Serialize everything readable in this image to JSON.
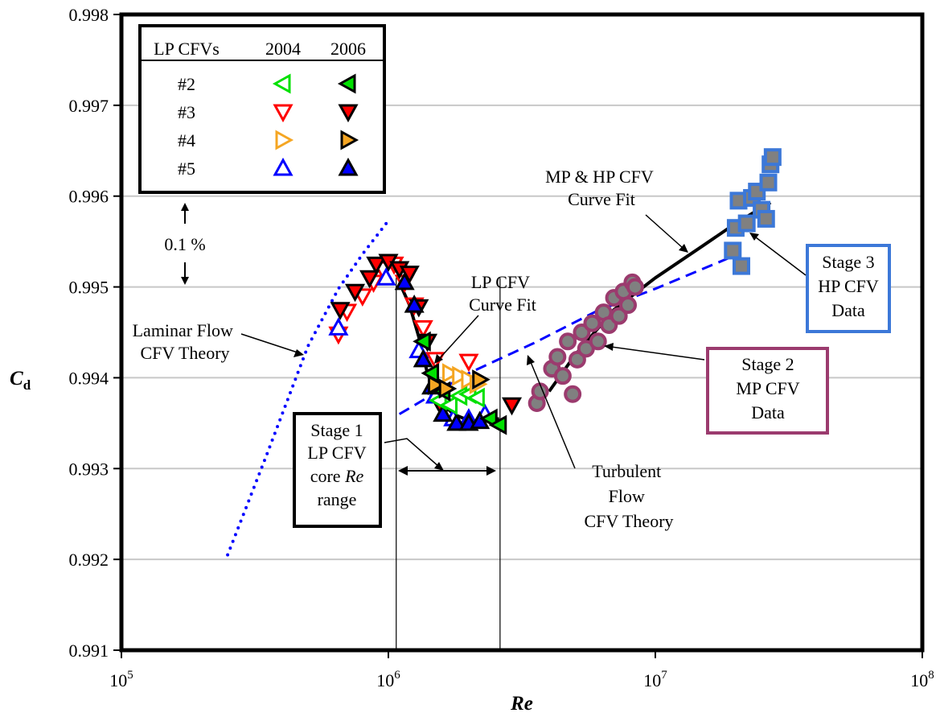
{
  "chart_data": {
    "type": "scatter",
    "title": "",
    "xlabel": "Re",
    "ylabel": "C",
    "ylabel_sub": "d",
    "x_scale": "log",
    "xlim": [
      100000,
      100000000
    ],
    "ylim": [
      0.991,
      0.998
    ],
    "grid": "horizontal",
    "x_ticks": [
      {
        "value": 100000,
        "base": "10",
        "exp": "5"
      },
      {
        "value": 1000000,
        "base": "10",
        "exp": "6"
      },
      {
        "value": 10000000,
        "base": "10",
        "exp": "7"
      },
      {
        "value": 100000000,
        "base": "10",
        "exp": "8"
      }
    ],
    "y_ticks": [
      0.991,
      0.992,
      0.993,
      0.994,
      0.995,
      0.996,
      0.997,
      0.998
    ],
    "y_tick_labels": [
      "0.991",
      "0.992",
      "0.993",
      "0.994",
      "0.995",
      "0.996",
      "0.997",
      "0.998"
    ],
    "legend": {
      "position": "top-left",
      "header": [
        "LP CFVs",
        "2004",
        "2006"
      ],
      "rows": [
        {
          "label": "#2",
          "color": "#00e000",
          "symbol": "triangle-left"
        },
        {
          "label": "#3",
          "color": "#ff0000",
          "symbol": "triangle-down"
        },
        {
          "label": "#4",
          "color": "#f5a623",
          "symbol": "triangle-right"
        },
        {
          "label": "#5",
          "color": "#0000ff",
          "symbol": "triangle-up"
        }
      ]
    },
    "series": [
      {
        "name": "#3 2004",
        "color": "#ff0000",
        "symbol": "triangle-down",
        "filled": false,
        "x": [
          650000,
          700000,
          800000,
          880000,
          950000,
          1050000,
          1150000,
          1250000,
          1350000,
          1500000,
          2000000
        ],
        "y": [
          0.99448,
          0.99473,
          0.9949,
          0.99505,
          0.9952,
          0.99525,
          0.99505,
          0.9948,
          0.99455,
          0.9942,
          0.99418
        ]
      },
      {
        "name": "#3 2006",
        "color": "#ff0000",
        "symbol": "triangle-down",
        "filled": true,
        "x": [
          660000,
          750000,
          850000,
          900000,
          1000000,
          1100000,
          1200000,
          1300000,
          1400000,
          1600000,
          2900000
        ],
        "y": [
          0.99475,
          0.99495,
          0.9951,
          0.99525,
          0.99528,
          0.9952,
          0.99515,
          0.99478,
          0.9944,
          0.99365,
          0.9937
        ]
      },
      {
        "name": "#5 2004",
        "color": "#0000ff",
        "symbol": "triangle-up",
        "filled": false,
        "x": [
          650000,
          980000,
          1300000,
          1500000,
          1750000,
          2000000,
          2300000
        ],
        "y": [
          0.99455,
          0.9951,
          0.9943,
          0.9938,
          0.99355,
          0.99355,
          0.9936
        ]
      },
      {
        "name": "#5 2006",
        "color": "#0000ff",
        "symbol": "triangle-up",
        "filled": true,
        "x": [
          1150000,
          1250000,
          1350000,
          1450000,
          1600000,
          1800000,
          2000000,
          2200000
        ],
        "y": [
          0.99505,
          0.9948,
          0.9942,
          0.9939,
          0.9936,
          0.9935,
          0.9935,
          0.99352
        ]
      },
      {
        "name": "#2 2004",
        "color": "#00e000",
        "symbol": "triangle-left",
        "filled": false,
        "x": [
          1550000,
          1700000,
          1850000,
          2000000,
          2150000
        ],
        "y": [
          0.99375,
          0.9937,
          0.9938,
          0.99382,
          0.99378
        ]
      },
      {
        "name": "#2 2006",
        "color": "#00e000",
        "symbol": "triangle-left",
        "filled": true,
        "x": [
          1350000,
          1450000,
          1600000,
          2400000,
          2600000
        ],
        "y": [
          0.9944,
          0.99405,
          0.99385,
          0.99355,
          0.99348
        ]
      },
      {
        "name": "#4 2004",
        "color": "#f5a623",
        "symbol": "triangle-right",
        "filled": false,
        "x": [
          1700000,
          1850000,
          2000000,
          2150000
        ],
        "y": [
          0.99405,
          0.99402,
          0.99398,
          0.99393
        ]
      },
      {
        "name": "#4 2006",
        "color": "#f5a623",
        "symbol": "triangle-right",
        "filled": true,
        "x": [
          1500000,
          1650000,
          2200000
        ],
        "y": [
          0.99392,
          0.99388,
          0.99398
        ]
      },
      {
        "name": "Stage 2 MP CFV Data",
        "color": "#9b3b6e",
        "symbol": "circle",
        "x": [
          3600000,
          3700000,
          4100000,
          4300000,
          4500000,
          4700000,
          4900000,
          5100000,
          5300000,
          5500000,
          5800000,
          6100000,
          6400000,
          6700000,
          7000000,
          7300000,
          7600000,
          7900000,
          8200000,
          8400000
        ],
        "y": [
          0.99372,
          0.99385,
          0.9941,
          0.99423,
          0.99402,
          0.9944,
          0.99382,
          0.9942,
          0.9945,
          0.99432,
          0.9946,
          0.9944,
          0.99472,
          0.99458,
          0.99488,
          0.99468,
          0.99495,
          0.9948,
          0.99505,
          0.995
        ]
      },
      {
        "name": "Stage 3 HP CFV Data",
        "color": "#3c78d8",
        "symbol": "square",
        "x": [
          19500000,
          20000000,
          20500000,
          21000000,
          22000000,
          23000000,
          24000000,
          25000000,
          26000000,
          26500000,
          27000000,
          27500000
        ],
        "y": [
          0.9954,
          0.99565,
          0.99595,
          0.99523,
          0.9957,
          0.99598,
          0.99605,
          0.99585,
          0.99575,
          0.99615,
          0.99635,
          0.99643
        ]
      }
    ],
    "curves": [
      {
        "name": "Laminar Flow CFV Theory",
        "style": "dotted",
        "color": "#0000ff",
        "x": [
          250000,
          350000,
          500000,
          650000,
          800000,
          1000000
        ],
        "y": [
          0.99205,
          0.99315,
          0.99435,
          0.99498,
          0.99536,
          0.99573
        ]
      },
      {
        "name": "Turbulent Flow CFV Theory",
        "style": "dashed",
        "color": "#0000ff",
        "x": [
          1100000,
          2000000,
          3500000,
          6000000,
          10000000,
          20000000
        ],
        "y": [
          0.9936,
          0.99405,
          0.99438,
          0.99473,
          0.99498,
          0.99535
        ]
      },
      {
        "name": "LP CFV Curve Fit",
        "style": "solid",
        "color": "#000000",
        "x": [
          1100000,
          1200000,
          1300000,
          1400000,
          1550000,
          1750000,
          2000000,
          2300000,
          2600000
        ],
        "y": [
          0.99505,
          0.9948,
          0.99445,
          0.99405,
          0.99375,
          0.9936,
          0.99353,
          0.99352,
          0.99355
        ]
      },
      {
        "name": "MP & HP CFV Curve Fit",
        "style": "solid",
        "color": "#000000",
        "x": [
          4000000,
          5000000,
          7000000,
          10000000,
          15000000,
          20000000,
          27000000
        ],
        "y": [
          0.99385,
          0.99425,
          0.99475,
          0.9951,
          0.99545,
          0.9957,
          0.99593
        ]
      }
    ],
    "vlines": [
      1070000,
      2620000
    ],
    "annotations": {
      "percent_label": "0.1 %",
      "laminar": [
        "Laminar Flow",
        "CFV Theory"
      ],
      "lp_fit": [
        "LP CFV",
        "Curve Fit"
      ],
      "mphp_fit": [
        "MP & HP CFV",
        "Curve Fit"
      ],
      "turbulent": [
        "Turbulent",
        "Flow",
        "CFV Theory"
      ],
      "stage1_l1": "Stage 1",
      "stage1_l2": "LP CFV",
      "stage1_l3a": "core ",
      "stage1_l3b": "Re",
      "stage1_l4": "range",
      "stage2": [
        "Stage 2",
        "MP CFV",
        "Data"
      ],
      "stage3": [
        "Stage 3",
        "HP CFV",
        "Data"
      ]
    }
  }
}
